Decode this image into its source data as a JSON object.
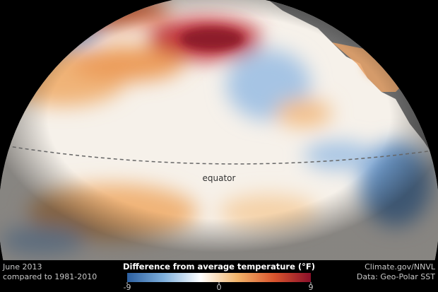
{
  "map": {
    "date": "June 2013",
    "baseline": "compared to 1981-2010",
    "equator_label": "equator",
    "credit": "Climate.gov/NNVL",
    "source": "Data: Geo-Polar SST",
    "colorbar": {
      "title": "Difference from average temperature (°F)",
      "lim": [
        -9,
        9
      ],
      "ticks": [
        -9,
        0,
        9
      ],
      "colors": [
        "#2c5fa0",
        "#7fb0dc",
        "#ffffff",
        "#f2b46a",
        "#d9552e",
        "#8a0f2a"
      ]
    }
  }
}
